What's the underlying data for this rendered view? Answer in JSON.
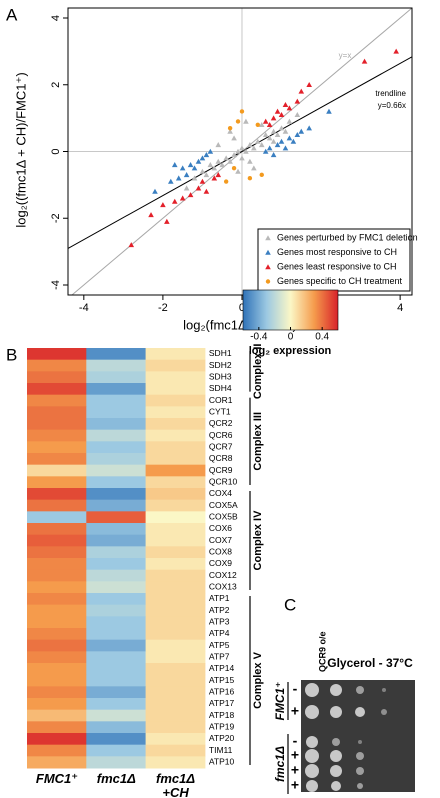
{
  "panel_labels": [
    "A",
    "B",
    "C"
  ],
  "chart_data": [
    {
      "type": "scatter",
      "xlabel": "log₂(fmc1Δ/FMC1⁺)",
      "ylabel": "log₂((fmc1Δ + CH)/FMC1⁺)",
      "xlim": [
        -4.4,
        4.3
      ],
      "ylim": [
        -4.3,
        4.3
      ],
      "xticks": [
        -4,
        -2,
        0,
        2,
        4
      ],
      "yticks": [
        -4,
        -2,
        0,
        2,
        4
      ],
      "reference_lines": [
        {
          "slope": 1,
          "color": "#a8a8a8"
        },
        {
          "slope": 0.66,
          "color": "#000000"
        }
      ],
      "annotations": [
        "y=x",
        "trendline",
        "y=0.66x"
      ],
      "legend": "bottom-right",
      "series": [
        {
          "name": "Genes perturbed by FMC1 deletion",
          "color": "#b9b9b9",
          "marker": "triangle",
          "x": [
            -1.2,
            -1.0,
            -0.9,
            -0.8,
            -0.7,
            -0.6,
            -0.5,
            -0.4,
            -0.3,
            -0.2,
            -0.1,
            0.0,
            0.1,
            0.2,
            0.3,
            0.4,
            0.5,
            0.6,
            0.7,
            0.8,
            0.9,
            1.0,
            1.1,
            1.2,
            -0.3,
            0.1,
            -0.1,
            0.3,
            -0.6,
            0.5,
            -1.4,
            1.4,
            -0.2,
            0.2,
            0.0,
            0.8
          ],
          "y": [
            -0.8,
            -0.6,
            -0.7,
            -0.4,
            -0.5,
            -0.3,
            -0.4,
            -0.2,
            -0.3,
            -0.1,
            0.0,
            0.1,
            0.0,
            0.2,
            0.1,
            0.3,
            0.2,
            0.5,
            0.4,
            0.6,
            0.5,
            0.7,
            0.6,
            0.9,
            0.6,
            0.9,
            -0.6,
            -0.5,
            0.2,
            0.8,
            -1.1,
            1.1,
            0.4,
            -0.3,
            -0.2,
            0.3
          ]
        },
        {
          "name": "Genes most responsive to CH",
          "color": "#3a7fc1",
          "marker": "triangle",
          "x": [
            -1.8,
            -1.6,
            -1.5,
            -1.4,
            -1.3,
            -1.2,
            -1.1,
            -1.0,
            -0.9,
            -0.8,
            -2.2,
            -1.7,
            0.6,
            0.7,
            0.8,
            0.9,
            1.0,
            1.1,
            1.2,
            1.3,
            1.4,
            1.5,
            1.7,
            2.2
          ],
          "y": [
            -0.9,
            -0.8,
            -0.5,
            -0.7,
            -0.4,
            -0.5,
            -0.3,
            -0.2,
            -0.1,
            0.0,
            -1.2,
            -0.4,
            0.0,
            0.1,
            -0.1,
            0.2,
            0.3,
            0.1,
            0.4,
            0.3,
            0.5,
            0.6,
            0.7,
            1.2
          ]
        },
        {
          "name": "Genes least responsive to CH",
          "color": "#e3202a",
          "marker": "triangle",
          "x": [
            -2.8,
            -2.3,
            -2.0,
            -1.9,
            -1.7,
            -1.5,
            -1.3,
            -1.1,
            -1.0,
            -0.9,
            -0.7,
            -0.6,
            0.6,
            0.7,
            0.8,
            0.9,
            1.0,
            1.1,
            1.2,
            1.4,
            1.5,
            1.7,
            3.1,
            3.9
          ],
          "y": [
            -2.8,
            -1.9,
            -1.6,
            -2.1,
            -1.5,
            -1.4,
            -1.3,
            -1.1,
            -0.9,
            -1.2,
            -0.8,
            -0.7,
            0.9,
            0.8,
            1.0,
            1.2,
            1.1,
            1.4,
            1.3,
            1.5,
            1.8,
            2.0,
            2.7,
            3.0
          ]
        },
        {
          "name": "Genes specific to CH treatment",
          "color": "#f39a1e",
          "marker": "circle",
          "x": [
            -0.3,
            -0.1,
            0.2,
            0.5,
            -0.2,
            0.4,
            -0.4,
            0.0
          ],
          "y": [
            0.7,
            0.9,
            -0.8,
            -0.7,
            -0.5,
            0.8,
            -0.9,
            1.2
          ]
        }
      ]
    },
    {
      "type": "heatmap",
      "columns": [
        "FMC1⁺",
        "fmc1Δ",
        "fmc1Δ\n+CH"
      ],
      "zlim": [
        -0.6,
        0.6
      ],
      "colormap": [
        "#2f72b8",
        "#9cc9e2",
        "#fbf7c6",
        "#f59b4c",
        "#d8222a"
      ],
      "colorbar": {
        "ticks": [
          -0.4,
          0,
          0.4
        ],
        "label": "log₂ expression"
      },
      "groups": [
        {
          "label": "Complex II",
          "genes": [
            "SDH1",
            "SDH2",
            "SDH3",
            "SDH4"
          ],
          "values": [
            [
              0.55,
              -0.5,
              0.05
            ],
            [
              0.35,
              -0.2,
              0.1
            ],
            [
              0.4,
              -0.25,
              0.05
            ],
            [
              0.5,
              -0.45,
              0.05
            ]
          ]
        },
        {
          "label": "Complex III",
          "genes": [
            "COR1",
            "CYT1",
            "QCR2",
            "QCR6",
            "QCR7",
            "QCR8",
            "QCR9",
            "QCR10"
          ],
          "values": [
            [
              0.35,
              -0.3,
              0.1
            ],
            [
              0.4,
              -0.3,
              0.05
            ],
            [
              0.4,
              -0.35,
              0.1
            ],
            [
              0.35,
              -0.2,
              0.05
            ],
            [
              0.3,
              -0.3,
              0.1
            ],
            [
              0.35,
              -0.25,
              0.1
            ],
            [
              0.1,
              -0.15,
              0.3
            ],
            [
              0.3,
              -0.3,
              0.1
            ]
          ]
        },
        {
          "label": "Complex IV",
          "genes": [
            "COX4",
            "COX5A",
            "COX5B",
            "COX6",
            "COX7",
            "COX8",
            "COX9",
            "COX12",
            "COX13"
          ],
          "values": [
            [
              0.5,
              -0.5,
              0.15
            ],
            [
              0.4,
              -0.4,
              0.1
            ],
            [
              -0.3,
              0.45,
              0.0
            ],
            [
              0.4,
              -0.35,
              0.05
            ],
            [
              0.45,
              -0.4,
              0.05
            ],
            [
              0.4,
              -0.25,
              0.1
            ],
            [
              0.35,
              -0.3,
              0.05
            ],
            [
              0.35,
              -0.2,
              0.1
            ],
            [
              0.3,
              -0.15,
              0.1
            ]
          ]
        },
        {
          "label": "Complex V",
          "genes": [
            "ATP1",
            "ATP2",
            "ATP3",
            "ATP4",
            "ATP5",
            "ATP7",
            "ATP14",
            "ATP15",
            "ATP16",
            "ATP17",
            "ATP18",
            "ATP19",
            "ATP20",
            "TIM11",
            "ATP10"
          ],
          "values": [
            [
              0.35,
              -0.3,
              0.1
            ],
            [
              0.3,
              -0.25,
              0.1
            ],
            [
              0.3,
              -0.3,
              0.1
            ],
            [
              0.35,
              -0.3,
              0.1
            ],
            [
              0.4,
              -0.4,
              0.05
            ],
            [
              0.35,
              -0.3,
              0.05
            ],
            [
              0.3,
              -0.3,
              0.1
            ],
            [
              0.3,
              -0.3,
              0.1
            ],
            [
              0.35,
              -0.4,
              0.1
            ],
            [
              0.3,
              -0.3,
              0.1
            ],
            [
              0.2,
              -0.15,
              0.1
            ],
            [
              0.35,
              -0.35,
              0.1
            ],
            [
              0.55,
              -0.5,
              0.05
            ],
            [
              0.35,
              -0.3,
              0.1
            ],
            [
              0.25,
              -0.2,
              0.05
            ]
          ]
        }
      ]
    }
  ],
  "panel_c": {
    "title": "Glycerol - 37°C",
    "column_label": "QCR9 o/e",
    "strains": [
      {
        "label": "FMC1⁺",
        "rows": [
          "-",
          "+"
        ]
      },
      {
        "label": "fmc1Δ",
        "rows": [
          "-",
          "+",
          "+",
          "+"
        ]
      }
    ]
  }
}
